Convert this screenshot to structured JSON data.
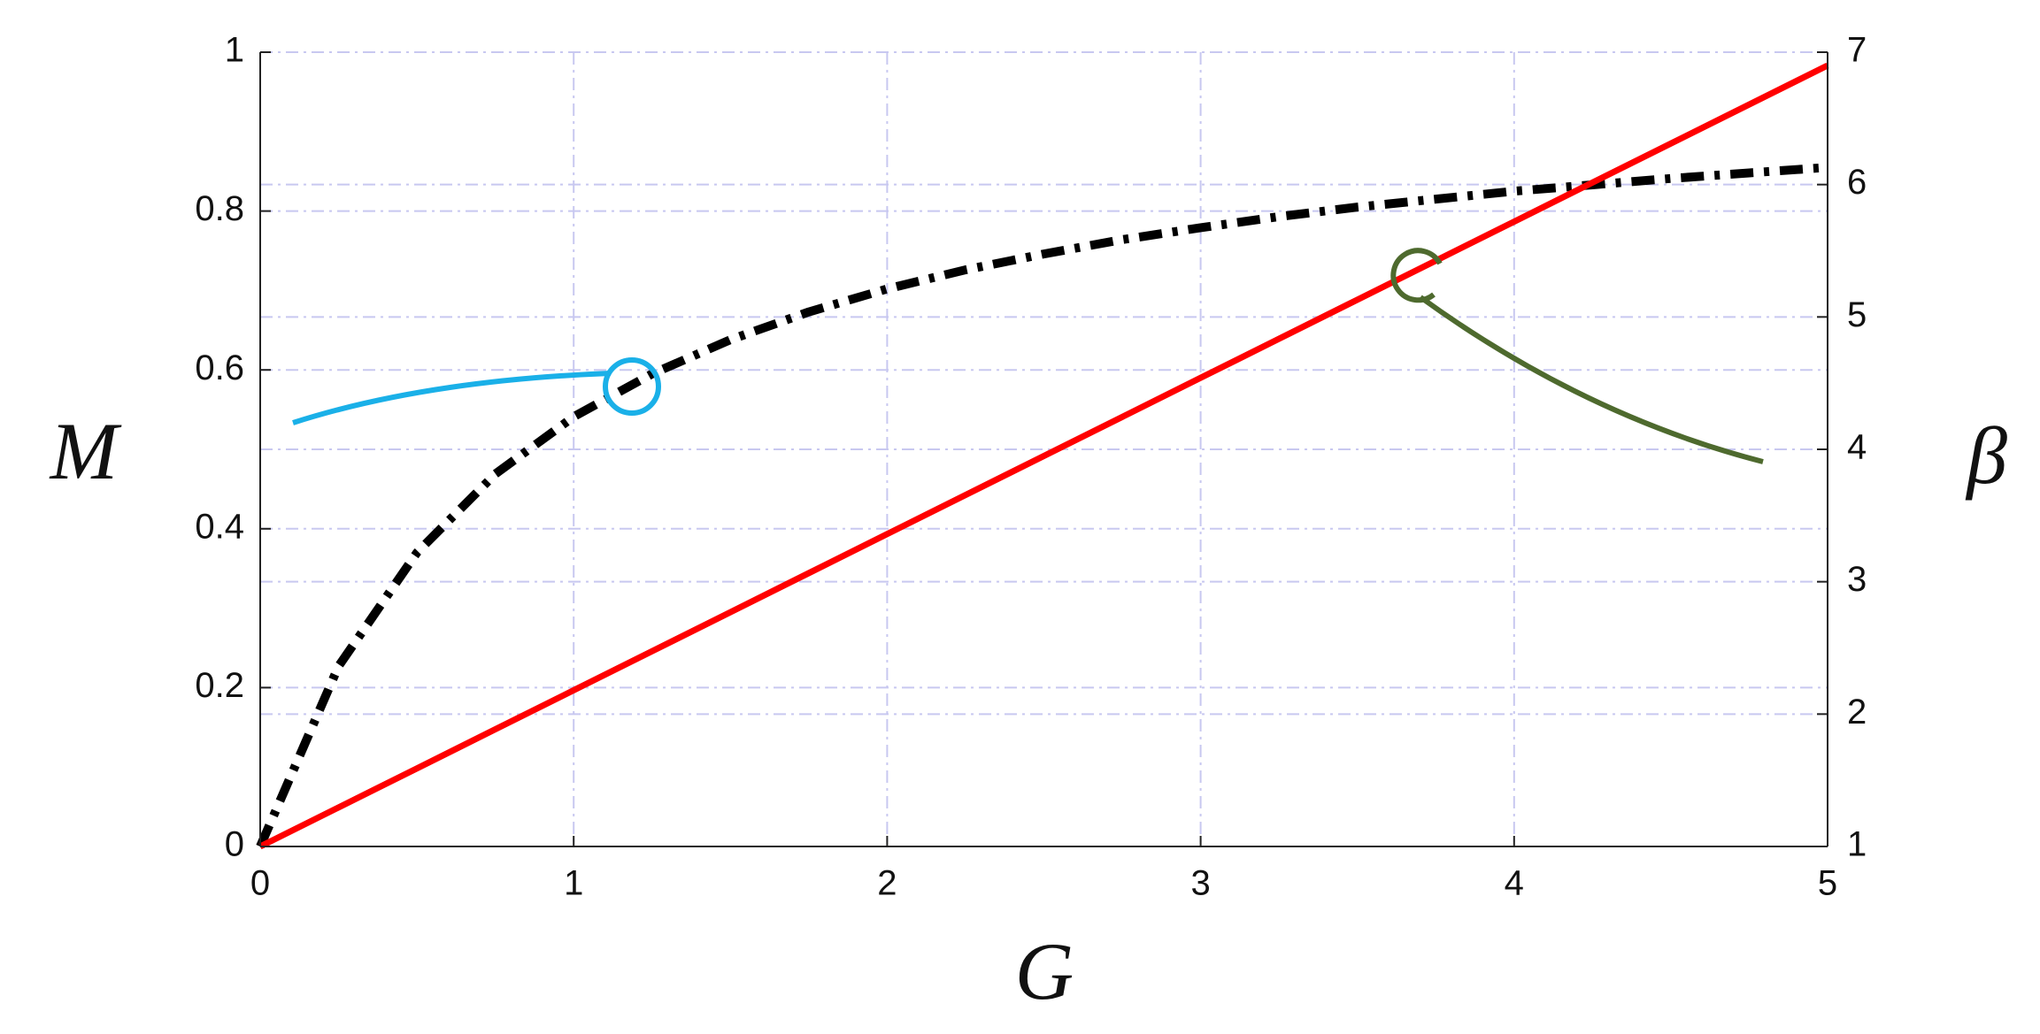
{
  "chart_data": {
    "type": "line",
    "x_label": "G",
    "y_label": "M",
    "y2_label": "β",
    "x": [
      0,
      0.25,
      0.5,
      0.75,
      1,
      1.25,
      1.5,
      1.75,
      2,
      2.25,
      2.5,
      2.75,
      3,
      3.25,
      3.5,
      3.75,
      4,
      4.25,
      4.5,
      4.75,
      5
    ],
    "series": [
      {
        "color": "#000000",
        "style": "dashdot",
        "values": [
          0,
          0.227,
          0.37,
          0.469,
          0.541,
          0.595,
          0.638,
          0.673,
          0.702,
          0.726,
          0.746,
          0.764,
          0.779,
          0.793,
          0.805,
          0.815,
          0.825,
          0.833,
          0.841,
          0.848,
          0.855
        ]
      },
      {
        "color": "#ff0000",
        "style": "solid",
        "axis": "y2",
        "values": [
          1,
          1.295,
          1.59,
          1.885,
          2.18,
          2.475,
          2.77,
          3.065,
          3.36,
          3.655,
          3.95,
          4.245,
          4.54,
          4.835,
          5.13,
          5.425,
          5.72,
          6.015,
          6.31,
          6.605,
          6.9
        ]
      }
    ],
    "xlim": [
      0,
      5
    ],
    "xticks": [
      0,
      1,
      2,
      3,
      4,
      5
    ],
    "ylim": [
      0,
      1
    ],
    "yticks": [
      0,
      0.2,
      0.4,
      0.6,
      0.8,
      1
    ],
    "y2lim": [
      1,
      7
    ],
    "y2ticks": [
      1,
      2,
      3,
      4,
      5,
      6,
      7
    ],
    "grid": true,
    "x_label_color": "#3333ff",
    "y_label_color": "#000000",
    "y2_label_color": "#ff0000"
  }
}
